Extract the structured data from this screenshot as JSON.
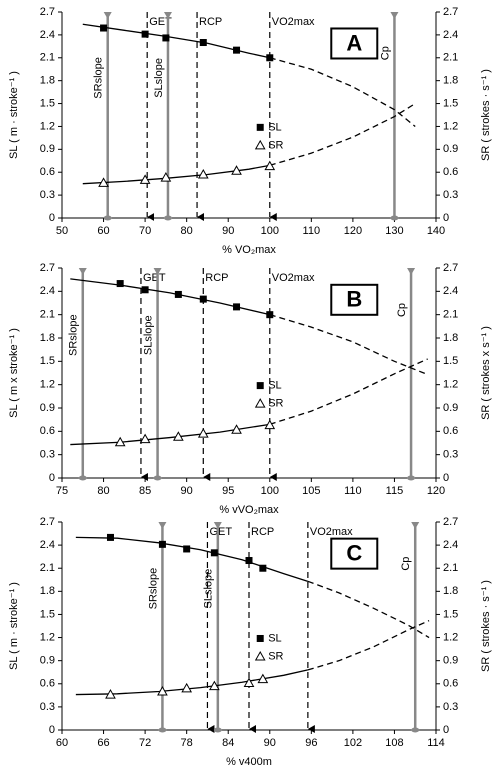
{
  "chart_data": [
    {
      "type": "line",
      "panel": "A",
      "xlabel": "% VO₂max",
      "ylabel": "SL ( m · stroke⁻¹ )",
      "y2label": "SR ( strokes · s⁻¹ )",
      "xlim": [
        50,
        140
      ],
      "xticks": [
        50,
        60,
        70,
        80,
        90,
        100,
        110,
        120,
        130,
        140
      ],
      "ylim": [
        0,
        2.7
      ],
      "yticks": [
        0,
        0.3,
        0.6,
        0.9,
        1.2,
        1.5,
        1.8,
        2.1,
        2.4,
        2.7
      ],
      "y2lim": [
        0,
        2.7
      ],
      "y2ticks": [
        0,
        0.3,
        0.6,
        0.9,
        1.2,
        1.5,
        1.8,
        2.1,
        2.4,
        2.7
      ],
      "series": [
        {
          "name": "SL",
          "marker": "square",
          "color": "#000000",
          "x": [
            60,
            70,
            75,
            84,
            92,
            100
          ],
          "values": [
            2.49,
            2.41,
            2.36,
            2.3,
            2.2,
            2.1
          ]
        },
        {
          "name": "SR",
          "marker": "triangle",
          "color": "#000000",
          "axis": "y2",
          "x": [
            60,
            70,
            75,
            84,
            92,
            100
          ],
          "values": [
            0.46,
            0.5,
            0.53,
            0.57,
            0.62,
            0.68
          ]
        }
      ],
      "curves": [
        {
          "style": "solid",
          "x": [
            55,
            65,
            75,
            85,
            95,
            100
          ],
          "values": [
            2.54,
            2.46,
            2.38,
            2.29,
            2.16,
            2.1
          ]
        },
        {
          "style": "dashed",
          "x": [
            100,
            110,
            120,
            130,
            135
          ],
          "values": [
            2.1,
            1.95,
            1.72,
            1.42,
            1.2
          ]
        },
        {
          "style": "solid",
          "axis": "y2",
          "x": [
            55,
            65,
            75,
            85,
            95,
            100
          ],
          "values": [
            0.45,
            0.48,
            0.52,
            0.57,
            0.64,
            0.69
          ]
        },
        {
          "style": "dashed",
          "axis": "y2",
          "x": [
            100,
            110,
            120,
            130,
            135
          ],
          "values": [
            0.69,
            0.85,
            1.06,
            1.33,
            1.5
          ]
        }
      ],
      "lines": [
        {
          "label": "SRslope",
          "x": 61,
          "style": "solid"
        },
        {
          "label": "GET",
          "x": 70.5,
          "style": "dashed"
        },
        {
          "label": "SLslope",
          "x": 75.5,
          "style": "solid"
        },
        {
          "label": "RCP",
          "x": 82.5,
          "style": "dashed"
        },
        {
          "label": "VO2max",
          "x": 100,
          "style": "dashed"
        },
        {
          "label": "Cp",
          "x": 130,
          "style": "solid"
        }
      ]
    },
    {
      "type": "line",
      "panel": "B",
      "xlabel": "% vVO₂max",
      "ylabel": "SL ( m x stroke⁻¹ )",
      "y2label": "SR ( strokes x s⁻¹ )",
      "xlim": [
        75,
        120
      ],
      "xticks": [
        75,
        80,
        85,
        90,
        95,
        100,
        105,
        110,
        115,
        120
      ],
      "ylim": [
        0,
        2.7
      ],
      "yticks": [
        0,
        0.3,
        0.6,
        0.9,
        1.2,
        1.5,
        1.8,
        2.1,
        2.4,
        2.7
      ],
      "y2lim": [
        0,
        2.7
      ],
      "y2ticks": [
        0,
        0.3,
        0.6,
        0.9,
        1.2,
        1.5,
        1.8,
        2.1,
        2.4,
        2.7
      ],
      "series": [
        {
          "name": "SL",
          "marker": "square",
          "color": "#000000",
          "x": [
            82,
            85,
            89,
            92,
            96,
            100
          ],
          "values": [
            2.5,
            2.42,
            2.36,
            2.3,
            2.2,
            2.1
          ]
        },
        {
          "name": "SR",
          "marker": "triangle",
          "color": "#000000",
          "axis": "y2",
          "x": [
            82,
            85,
            89,
            92,
            96,
            100
          ],
          "values": [
            0.46,
            0.5,
            0.53,
            0.57,
            0.62,
            0.68
          ]
        }
      ],
      "curves": [
        {
          "style": "solid",
          "x": [
            76,
            82,
            88,
            94,
            100
          ],
          "values": [
            2.56,
            2.48,
            2.38,
            2.25,
            2.1
          ]
        },
        {
          "style": "dashed",
          "x": [
            100,
            105,
            110,
            115,
            119
          ],
          "values": [
            2.1,
            1.94,
            1.75,
            1.5,
            1.33
          ]
        },
        {
          "style": "solid",
          "axis": "y2",
          "x": [
            76,
            82,
            88,
            94,
            100
          ],
          "values": [
            0.43,
            0.46,
            0.52,
            0.59,
            0.69
          ]
        },
        {
          "style": "dashed",
          "axis": "y2",
          "x": [
            100,
            105,
            110,
            115,
            119
          ],
          "values": [
            0.69,
            0.86,
            1.08,
            1.34,
            1.53
          ]
        }
      ],
      "lines": [
        {
          "label": "SRslope",
          "x": 77.5,
          "style": "solid"
        },
        {
          "label": "GET",
          "x": 84.5,
          "style": "dashed"
        },
        {
          "label": "SLslope",
          "x": 86.5,
          "style": "solid"
        },
        {
          "label": "RCP",
          "x": 92,
          "style": "dashed"
        },
        {
          "label": "VO2max",
          "x": 100,
          "style": "dashed"
        },
        {
          "label": "Cp",
          "x": 117,
          "style": "solid"
        }
      ]
    },
    {
      "type": "line",
      "panel": "C",
      "xlabel": "% v400m",
      "ylabel": "SL ( m · stroke⁻¹ )",
      "y2label": "SR ( strokes · s⁻¹ )",
      "xlim": [
        60,
        114
      ],
      "xticks": [
        60,
        66,
        72,
        78,
        84,
        90,
        96,
        102,
        108,
        114
      ],
      "ylim": [
        0,
        2.7
      ],
      "yticks": [
        0,
        0.3,
        0.6,
        0.9,
        1.2,
        1.5,
        1.8,
        2.1,
        2.4,
        2.7
      ],
      "y2lim": [
        0,
        2.7
      ],
      "y2ticks": [
        0,
        0.3,
        0.6,
        0.9,
        1.2,
        1.5,
        1.8,
        2.1,
        2.4,
        2.7
      ],
      "series": [
        {
          "name": "SL",
          "marker": "square",
          "color": "#000000",
          "x": [
            67,
            74.5,
            78,
            82,
            87,
            89
          ],
          "values": [
            2.5,
            2.41,
            2.35,
            2.3,
            2.2,
            2.1
          ]
        },
        {
          "name": "SR",
          "marker": "triangle",
          "color": "#000000",
          "axis": "y2",
          "x": [
            67,
            74.5,
            78,
            82,
            87,
            89
          ],
          "values": [
            0.46,
            0.5,
            0.54,
            0.57,
            0.61,
            0.66
          ]
        }
      ],
      "curves": [
        {
          "style": "solid",
          "x": [
            62,
            68,
            74,
            80,
            86,
            92,
            95.5
          ],
          "values": [
            2.5,
            2.49,
            2.43,
            2.34,
            2.21,
            2.03,
            1.93
          ]
        },
        {
          "style": "dashed",
          "x": [
            95.5,
            100,
            105,
            110,
            113
          ],
          "values": [
            1.93,
            1.78,
            1.58,
            1.36,
            1.2
          ]
        },
        {
          "style": "solid",
          "axis": "y2",
          "x": [
            62,
            68,
            74,
            80,
            86,
            92,
            95.5
          ],
          "values": [
            0.46,
            0.47,
            0.5,
            0.55,
            0.62,
            0.71,
            0.78
          ]
        },
        {
          "style": "dashed",
          "axis": "y2",
          "x": [
            95.5,
            100,
            105,
            110,
            113
          ],
          "values": [
            0.78,
            0.9,
            1.08,
            1.3,
            1.42
          ]
        }
      ],
      "lines": [
        {
          "label": "SRslope",
          "x": 74.5,
          "style": "solid"
        },
        {
          "label": "GET",
          "x": 81,
          "style": "dashed"
        },
        {
          "label": "SLslope",
          "x": 82.5,
          "style": "solid"
        },
        {
          "label": "RCP",
          "x": 87,
          "style": "dashed"
        },
        {
          "label": "VO2max",
          "x": 95.5,
          "style": "dashed"
        },
        {
          "label": "Cp",
          "x": 111,
          "style": "solid"
        }
      ]
    }
  ]
}
